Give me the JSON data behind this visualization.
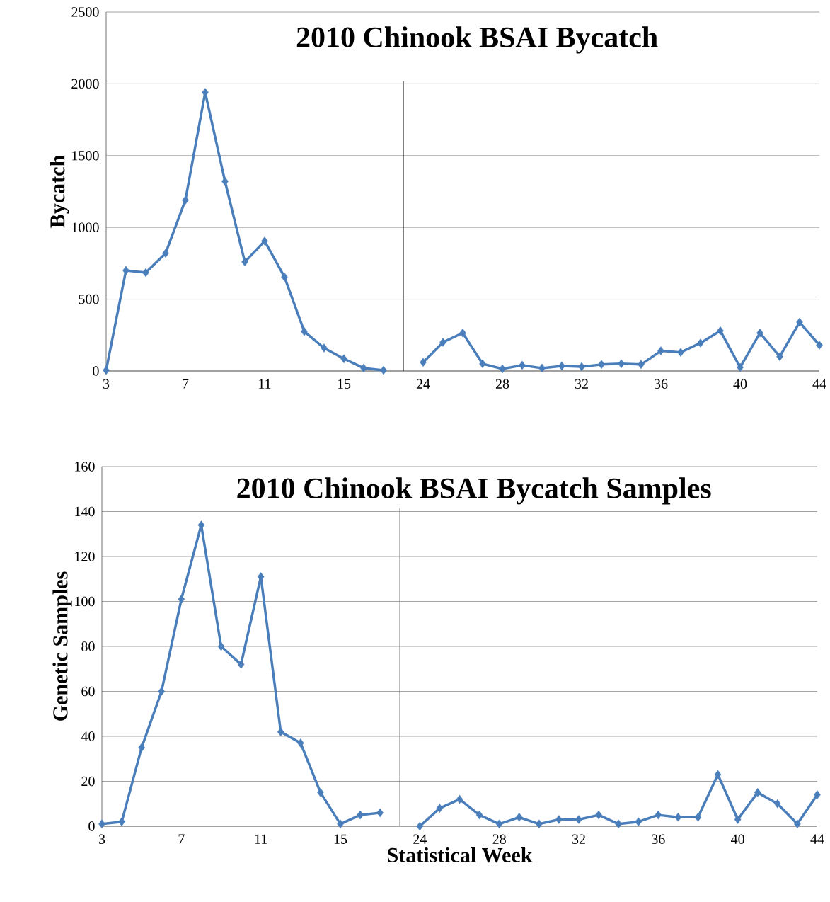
{
  "chart_data": [
    {
      "type": "line",
      "title": "2010 Chinook BSAI Bycatch",
      "ylabel": "Bycatch",
      "categories": [
        "3",
        null,
        null,
        null,
        "7",
        null,
        null,
        null,
        "11",
        null,
        null,
        null,
        "15",
        null,
        null,
        null,
        "24",
        null,
        null,
        null,
        "28",
        null,
        null,
        null,
        "32",
        null,
        null,
        null,
        "36",
        null,
        null,
        null,
        "40",
        null,
        null,
        null,
        "44"
      ],
      "series": [
        {
          "color": "#4a7ebb",
          "values": [
            5,
            700,
            685,
            820,
            1190,
            1940,
            1320,
            760,
            905,
            655,
            275,
            160,
            85,
            20,
            5,
            null,
            60,
            200,
            265,
            50,
            15,
            40,
            20,
            35,
            30,
            45,
            50,
            45,
            140,
            130,
            195,
            280,
            25,
            265,
            100,
            340,
            180
          ]
        }
      ],
      "marker": "diamond",
      "line_style": "solid",
      "grid": "y",
      "ylim": [
        0,
        2500
      ],
      "yticks": [
        0,
        500,
        1000,
        1500,
        2000,
        2500
      ]
    },
    {
      "type": "line",
      "title": "2010 Chinook BSAI Bycatch Samples",
      "ylabel": "Genetic Samples",
      "xlabel": "Statistical Week",
      "categories": [
        "3",
        null,
        null,
        null,
        "7",
        null,
        null,
        null,
        "11",
        null,
        null,
        null,
        "15",
        null,
        null,
        null,
        "24",
        null,
        null,
        null,
        "28",
        null,
        null,
        null,
        "32",
        null,
        null,
        null,
        "36",
        null,
        null,
        null,
        "40",
        null,
        null,
        null,
        "44"
      ],
      "series": [
        {
          "color": "#4a7ebb",
          "values": [
            1,
            2,
            35,
            60,
            101,
            134,
            80,
            72,
            111,
            42,
            37,
            15,
            1,
            5,
            6,
            null,
            0,
            8,
            12,
            5,
            1,
            4,
            1,
            3,
            3,
            5,
            1,
            2,
            5,
            4,
            4,
            23,
            3,
            15,
            10,
            1,
            14
          ]
        }
      ],
      "marker": "diamond",
      "line_style": "solid",
      "grid": "y",
      "ylim": [
        0,
        160
      ],
      "yticks": [
        0,
        20,
        40,
        60,
        80,
        100,
        120,
        140,
        160
      ]
    }
  ]
}
